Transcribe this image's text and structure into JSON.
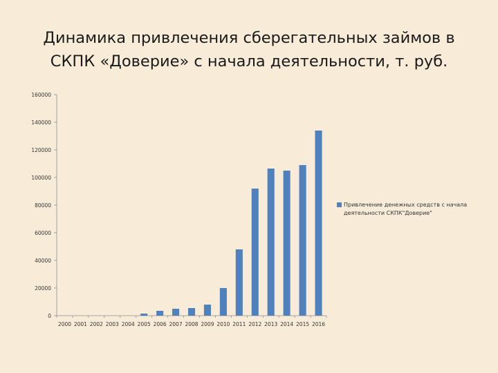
{
  "slide": {
    "title_line1": "Динамика привлечения сберегательных займов в",
    "title_line2": "СКПК «Доверие» с начала деятельности, т. руб."
  },
  "chart_data": {
    "type": "bar",
    "title": "",
    "xlabel": "",
    "ylabel": "",
    "categories": [
      "2000",
      "2001",
      "2002",
      "2003",
      "2004",
      "2005",
      "2006",
      "2007",
      "2008",
      "2009",
      "2010",
      "2011",
      "2012",
      "2013",
      "2014",
      "2015",
      "2016"
    ],
    "series": [
      {
        "name": "Привлечение денежных средств с начала деятельности СКПК\"Доверие\"",
        "values": [
          0,
          0,
          0,
          0,
          0,
          1500,
          3500,
          5000,
          5500,
          8000,
          20000,
          48000,
          92000,
          106500,
          105000,
          109000,
          134000
        ],
        "color": "#4f81bd"
      }
    ],
    "ylim": [
      0,
      160000
    ],
    "yticks": [
      0,
      20000,
      40000,
      60000,
      80000,
      100000,
      120000,
      140000,
      160000
    ],
    "grid": false,
    "legend_position": "right"
  }
}
